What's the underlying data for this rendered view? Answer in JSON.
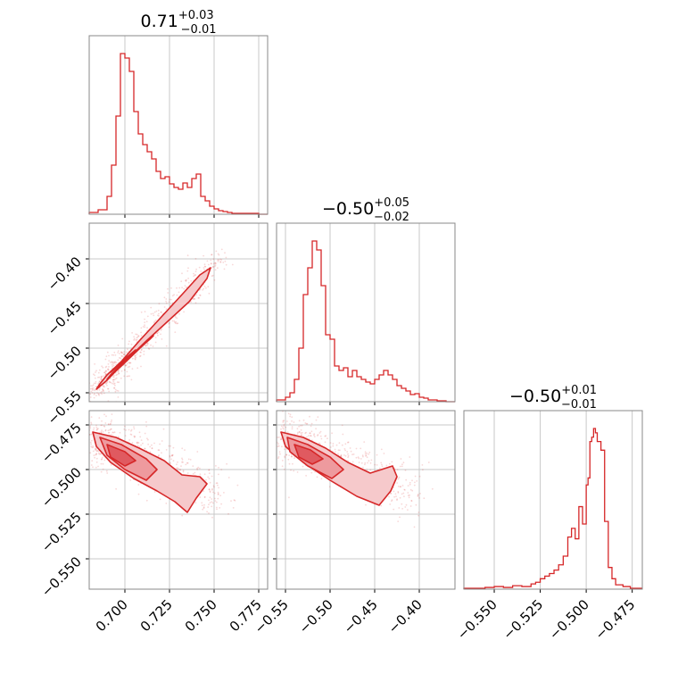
{
  "chart_data": {
    "type": "corner",
    "color": "#d62728",
    "grid": true,
    "panels": {
      "p1": {
        "title": {
          "value": "0.71",
          "plus": "+0.03",
          "minus": "−0.01"
        },
        "xlim": [
          0.68,
          0.78
        ],
        "bins": [
          0.68,
          0.685,
          0.69,
          0.6925,
          0.695,
          0.6975,
          0.7,
          0.7025,
          0.705,
          0.7075,
          0.71,
          0.7125,
          0.715,
          0.7175,
          0.72,
          0.7225,
          0.725,
          0.7275,
          0.73,
          0.7325,
          0.735,
          0.7375,
          0.74,
          0.7425,
          0.745,
          0.7475,
          0.75,
          0.7525,
          0.755,
          0.7575,
          0.76,
          0.765,
          0.77,
          0.775,
          0.78
        ],
        "counts": [
          2,
          5,
          20,
          55,
          110,
          180,
          175,
          160,
          115,
          90,
          78,
          70,
          62,
          48,
          40,
          42,
          34,
          30,
          28,
          35,
          30,
          40,
          45,
          20,
          15,
          9,
          6,
          4,
          3,
          2,
          1,
          1,
          1,
          0
        ]
      },
      "p4": {
        "title": {
          "value": "−0.50",
          "plus": "+0.05",
          "minus": "−0.02"
        },
        "xlim": [
          -0.56,
          -0.36
        ],
        "bins": [
          -0.56,
          -0.55,
          -0.545,
          -0.54,
          -0.535,
          -0.53,
          -0.525,
          -0.52,
          -0.515,
          -0.51,
          -0.505,
          -0.5,
          -0.495,
          -0.49,
          -0.485,
          -0.48,
          -0.475,
          -0.47,
          -0.465,
          -0.46,
          -0.455,
          -0.45,
          -0.445,
          -0.44,
          -0.435,
          -0.43,
          -0.425,
          -0.42,
          -0.415,
          -0.41,
          -0.405,
          -0.4,
          -0.395,
          -0.39,
          -0.38,
          -0.37,
          -0.36
        ],
        "counts": [
          2,
          5,
          10,
          25,
          60,
          120,
          150,
          180,
          170,
          130,
          75,
          70,
          40,
          35,
          38,
          28,
          35,
          28,
          25,
          22,
          20,
          25,
          30,
          35,
          30,
          25,
          18,
          15,
          12,
          8,
          9,
          5,
          4,
          2,
          1,
          0
        ]
      },
      "p9": {
        "title": {
          "value": "−0.50",
          "plus": "+0.01",
          "minus": "−0.01"
        },
        "xlim": [
          -0.5665,
          -0.4695
        ],
        "bins": [
          -0.5665,
          -0.56,
          -0.555,
          -0.55,
          -0.545,
          -0.54,
          -0.535,
          -0.53,
          -0.5275,
          -0.525,
          -0.5225,
          -0.52,
          -0.5175,
          -0.515,
          -0.5125,
          -0.51,
          -0.508,
          -0.506,
          -0.504,
          -0.502,
          -0.5,
          -0.499,
          -0.498,
          -0.497,
          -0.496,
          -0.495,
          -0.494,
          -0.492,
          -0.49,
          -0.488,
          -0.486,
          -0.484,
          -0.48,
          -0.476,
          -0.4695
        ],
        "counts": [
          1,
          1,
          2,
          3,
          2,
          4,
          3,
          6,
          8,
          12,
          15,
          18,
          22,
          28,
          38,
          60,
          70,
          58,
          95,
          75,
          120,
          128,
          170,
          175,
          185,
          180,
          170,
          160,
          78,
          25,
          12,
          5,
          3,
          1
        ]
      },
      "p2": {
        "xlim": [
          0.68,
          0.78
        ],
        "ylim": [
          -0.56,
          -0.36
        ],
        "trend": {
          "x0": 0.684,
          "y0": -0.547,
          "x1": 0.75,
          "y1": -0.405
        },
        "contours": [
          [
            [
              0.684,
              -0.546
            ],
            [
              0.69,
              -0.536
            ],
            [
              0.7,
              -0.515
            ],
            [
              0.712,
              -0.492
            ],
            [
              0.724,
              -0.47
            ],
            [
              0.736,
              -0.448
            ],
            [
              0.746,
              -0.422
            ],
            [
              0.748,
              -0.41
            ],
            [
              0.742,
              -0.418
            ],
            [
              0.732,
              -0.44
            ],
            [
              0.72,
              -0.466
            ],
            [
              0.708,
              -0.492
            ],
            [
              0.698,
              -0.515
            ],
            [
              0.69,
              -0.53
            ],
            [
              0.686,
              -0.54
            ]
          ],
          [
            [
              0.69,
              -0.535
            ],
            [
              0.698,
              -0.52
            ],
            [
              0.71,
              -0.497
            ],
            [
              0.716,
              -0.486
            ],
            [
              0.714,
              -0.49
            ],
            [
              0.706,
              -0.504
            ],
            [
              0.698,
              -0.518
            ],
            [
              0.692,
              -0.53
            ]
          ],
          [
            [
              0.692,
              -0.527
            ],
            [
              0.7,
              -0.512
            ],
            [
              0.706,
              -0.502
            ],
            [
              0.704,
              -0.506
            ],
            [
              0.696,
              -0.52
            ]
          ]
        ]
      },
      "p3": {
        "xlim": [
          0.68,
          0.78
        ],
        "ylim": [
          -0.567,
          -0.467
        ],
        "contours": [
          [
            [
              0.682,
              -0.479
            ],
            [
              0.695,
              -0.482
            ],
            [
              0.708,
              -0.488
            ],
            [
              0.722,
              -0.495
            ],
            [
              0.732,
              -0.503
            ],
            [
              0.742,
              -0.504
            ],
            [
              0.746,
              -0.508
            ],
            [
              0.74,
              -0.516
            ],
            [
              0.735,
              -0.524
            ],
            [
              0.728,
              -0.518
            ],
            [
              0.718,
              -0.512
            ],
            [
              0.705,
              -0.505
            ],
            [
              0.692,
              -0.496
            ],
            [
              0.684,
              -0.487
            ]
          ],
          [
            [
              0.686,
              -0.482
            ],
            [
              0.698,
              -0.486
            ],
            [
              0.712,
              -0.494
            ],
            [
              0.718,
              -0.5
            ],
            [
              0.712,
              -0.506
            ],
            [
              0.7,
              -0.5
            ],
            [
              0.69,
              -0.492
            ]
          ],
          [
            [
              0.69,
              -0.486
            ],
            [
              0.7,
              -0.49
            ],
            [
              0.706,
              -0.495
            ],
            [
              0.7,
              -0.498
            ],
            [
              0.692,
              -0.493
            ]
          ]
        ]
      },
      "p6": {
        "xlim": [
          -0.56,
          -0.36
        ],
        "ylim": [
          -0.567,
          -0.467
        ],
        "contours": [
          [
            [
              -0.555,
              -0.479
            ],
            [
              -0.53,
              -0.482
            ],
            [
              -0.505,
              -0.488
            ],
            [
              -0.48,
              -0.496
            ],
            [
              -0.455,
              -0.502
            ],
            [
              -0.43,
              -0.498
            ],
            [
              -0.425,
              -0.504
            ],
            [
              -0.432,
              -0.512
            ],
            [
              -0.445,
              -0.52
            ],
            [
              -0.47,
              -0.515
            ],
            [
              -0.5,
              -0.506
            ],
            [
              -0.53,
              -0.496
            ],
            [
              -0.55,
              -0.487
            ]
          ],
          [
            [
              -0.548,
              -0.482
            ],
            [
              -0.525,
              -0.486
            ],
            [
              -0.5,
              -0.493
            ],
            [
              -0.485,
              -0.5
            ],
            [
              -0.498,
              -0.505
            ],
            [
              -0.525,
              -0.498
            ],
            [
              -0.545,
              -0.49
            ]
          ],
          [
            [
              -0.54,
              -0.486
            ],
            [
              -0.522,
              -0.489
            ],
            [
              -0.508,
              -0.494
            ],
            [
              -0.52,
              -0.497
            ],
            [
              -0.535,
              -0.493
            ]
          ]
        ]
      }
    },
    "ticks": {
      "p1_x": [
        0.7,
        0.725,
        0.75,
        0.775
      ],
      "p2_y": [
        -0.4,
        -0.45,
        -0.5,
        -0.55
      ],
      "p3_y": [
        -0.475,
        -0.5,
        -0.525,
        -0.55
      ],
      "p3_x": [
        "0.700",
        "0.725",
        "0.750",
        "0.775"
      ],
      "p6_x": [
        "−0.55",
        "−0.50",
        "−0.45",
        "−0.40"
      ],
      "p9_x": [
        "−0.550",
        "−0.525",
        "−0.500",
        "−0.475"
      ],
      "p2_y_labels": [
        "−0.40",
        "−0.45",
        "−0.50",
        "−0.55"
      ],
      "p3_y_labels": [
        "−0.475",
        "−0.500",
        "−0.525",
        "−0.550"
      ],
      "p6_x_vals": [
        -0.55,
        -0.5,
        -0.45,
        -0.4
      ],
      "p9_x_vals": [
        -0.55,
        -0.525,
        -0.5,
        -0.475
      ]
    }
  }
}
